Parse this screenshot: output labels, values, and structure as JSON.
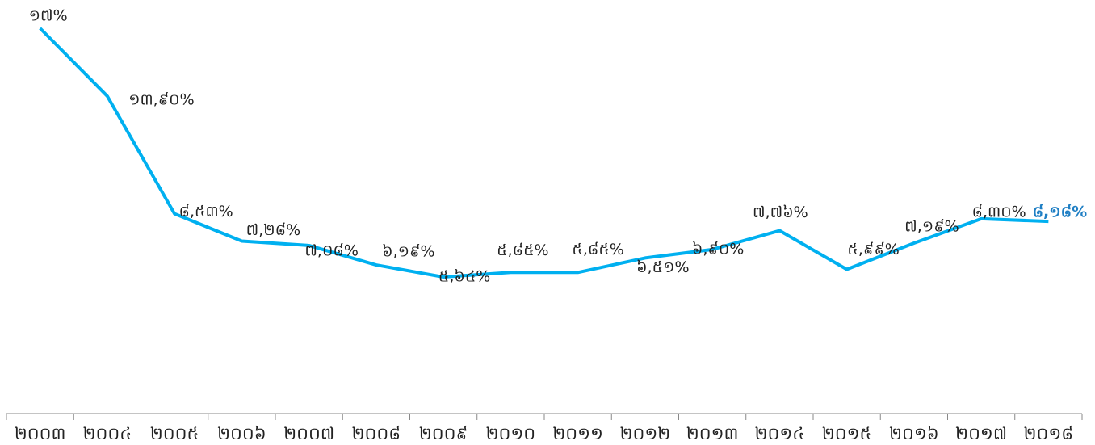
{
  "chart_data": {
    "type": "line",
    "categories": [
      "២០០៣",
      "២០០៤",
      "២០០៥",
      "២០០៦",
      "២០០៧",
      "២០០៨",
      "២០០៩",
      "២០១០",
      "២០១១",
      "២០១២",
      "២០១៣",
      "២០១៤",
      "២០១៥",
      "២០១៦",
      "២០១៧",
      "២០១៨"
    ],
    "series": [
      {
        "color": "#00b0f0",
        "values": [
          17,
          13.9,
          8.53,
          7.28,
          7.08,
          6.19,
          5.64,
          5.85,
          5.85,
          6.51,
          6.9,
          7.76,
          5.99,
          7.19,
          8.3,
          8.18
        ],
        "value_labels": [
          "១៧%",
          "១៣,៩០%",
          "៨,៥៣%",
          "៧,២៨%",
          "៧,០៨%",
          "៦,១៩%",
          "៥,៦៤%",
          "៥,៨៥%",
          "៥,៨៥%",
          "៦,៥១%",
          "៦,៩០%",
          "៧,៧៦%",
          "៥,៩៩%",
          "៧,១៩%",
          "៨,៣០%",
          "៨,១៨%"
        ]
      }
    ],
    "highlight_color": "#1f7fc4"
  }
}
